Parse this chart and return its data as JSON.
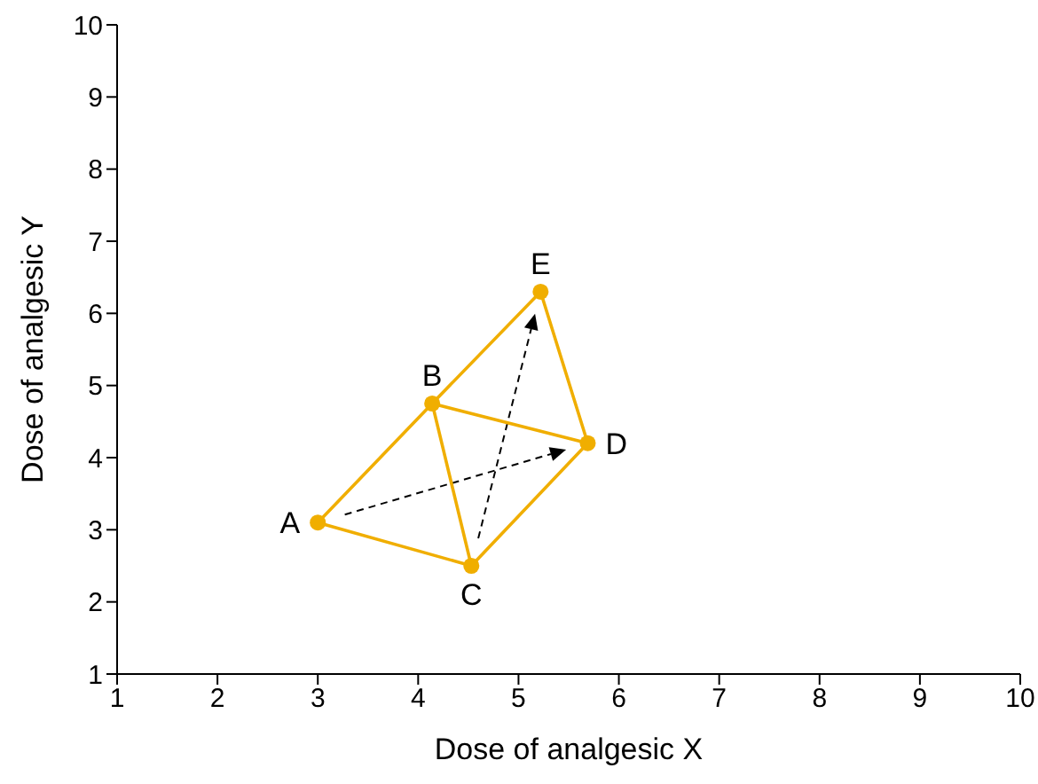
{
  "chart_data": {
    "type": "scatter",
    "xlabel": "Dose of analgesic X",
    "ylabel": "Dose of analgesic Y",
    "xlim": [
      1,
      10
    ],
    "xticks": [
      1,
      2,
      3,
      4,
      5,
      6,
      7,
      8,
      9,
      10
    ],
    "ylim": [
      1,
      10
    ],
    "yticks": [
      1,
      2,
      3,
      4,
      5,
      6,
      7,
      8,
      9,
      10
    ],
    "grid": false,
    "legend": false,
    "series": [
      {
        "type": "line",
        "color": "#f0ae00",
        "marker": "none",
        "line_style": "solid",
        "x": [
          4.53,
          3.0,
          4.14,
          5.22,
          5.69,
          4.14,
          4.53,
          5.69
        ],
        "values": [
          2.5,
          3.1,
          4.75,
          6.3,
          4.2,
          4.75,
          2.5,
          4.2
        ]
      },
      {
        "type": "scatter",
        "color": "#f0ae00",
        "marker": "circle",
        "x": [
          3.0,
          4.14,
          4.53,
          5.69,
          5.22
        ],
        "values": [
          3.1,
          4.75,
          2.5,
          4.2,
          6.3
        ]
      }
    ],
    "annotations": [
      {
        "text": "A",
        "x": 3.0,
        "y": 3.1
      },
      {
        "text": "B",
        "x": 4.14,
        "y": 4.75
      },
      {
        "text": "C",
        "x": 4.53,
        "y": 2.5
      },
      {
        "text": "D",
        "x": 5.69,
        "y": 4.2
      },
      {
        "text": "E",
        "x": 5.22,
        "y": 6.3
      }
    ]
  }
}
